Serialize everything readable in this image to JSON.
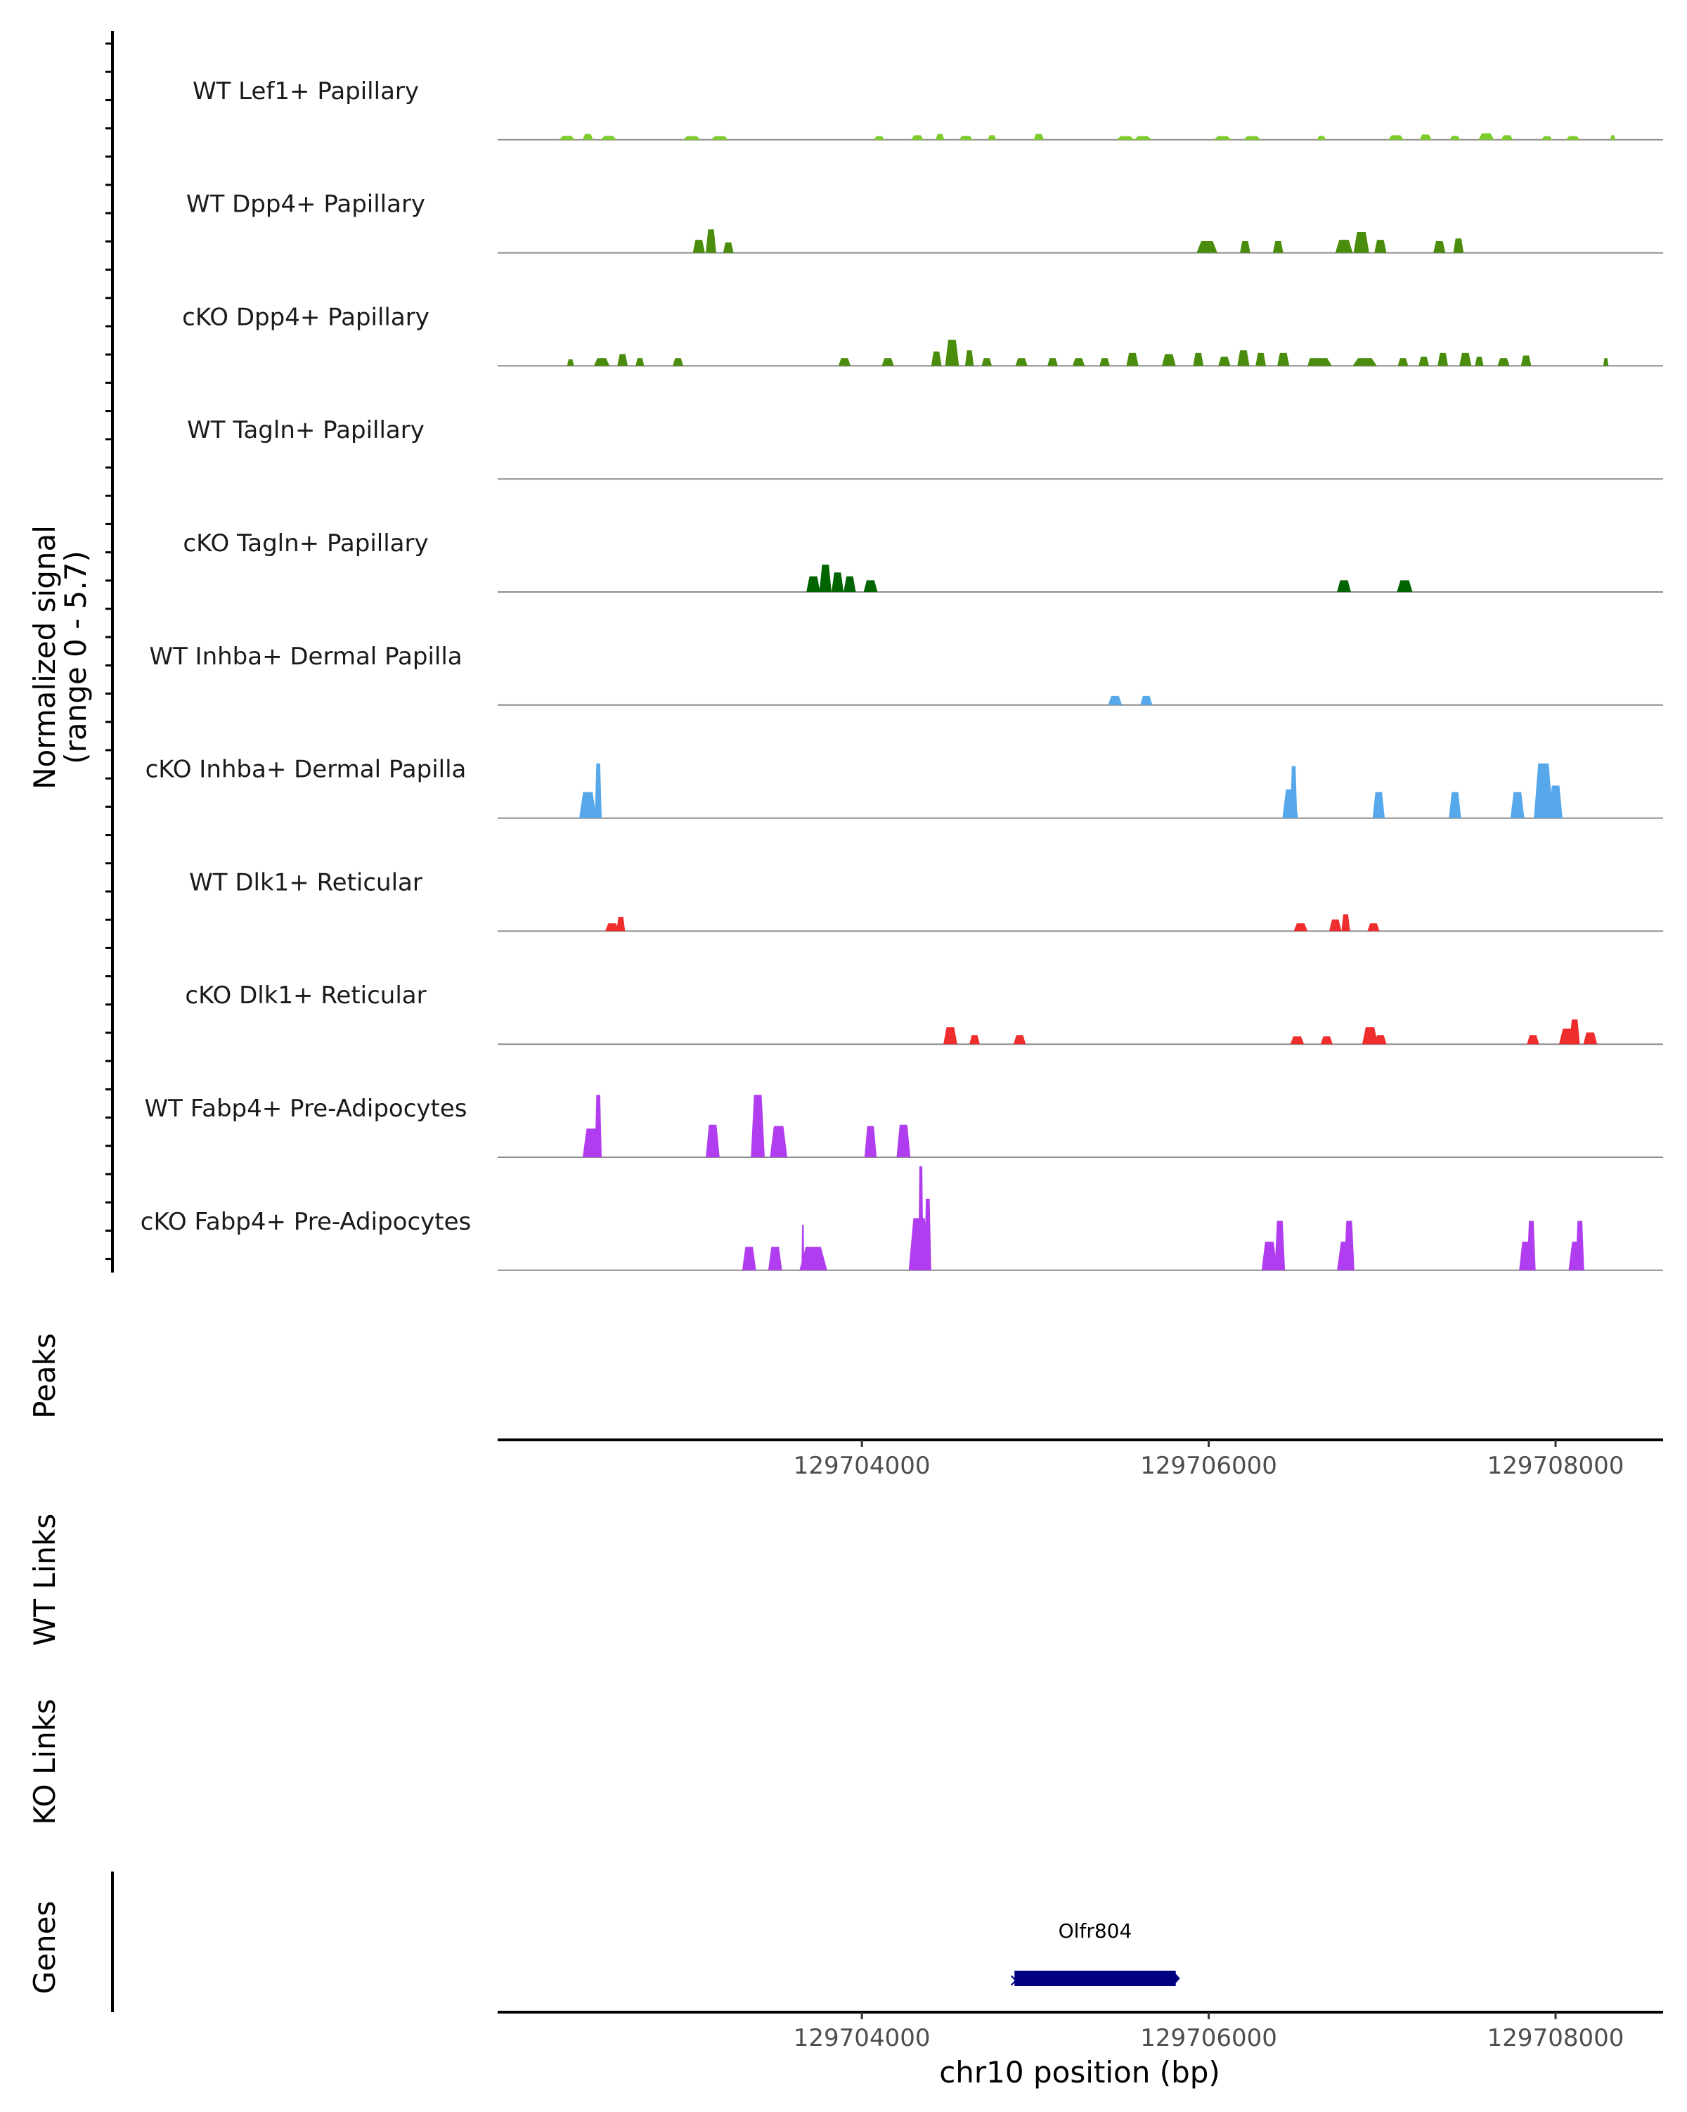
{
  "chart_data": {
    "type": "area",
    "subtype": "genome-coverage-track",
    "y_axis_title": "Normalized signal",
    "y_axis_range_label": "(range 0 - 5.7)",
    "ylim": [
      0,
      5.7
    ],
    "xlim": [
      129701900,
      129708620
    ],
    "tracks": [
      {
        "name": "WT Lef1+ Papillary",
        "color": "#7ccd2a",
        "peaks": [
          [
            129702300,
            0.3,
            90
          ],
          [
            129702420,
            0.45,
            60
          ],
          [
            129702540,
            0.3,
            90
          ],
          [
            129703020,
            0.28,
            100
          ],
          [
            129703180,
            0.28,
            100
          ],
          [
            129704100,
            0.28,
            60
          ],
          [
            129704320,
            0.35,
            70
          ],
          [
            129704450,
            0.45,
            50
          ],
          [
            129704600,
            0.3,
            80
          ],
          [
            129704750,
            0.35,
            50
          ],
          [
            129705020,
            0.45,
            60
          ],
          [
            129705520,
            0.28,
            100
          ],
          [
            129705620,
            0.28,
            100
          ],
          [
            129706080,
            0.28,
            100
          ],
          [
            129706250,
            0.28,
            100
          ],
          [
            129706650,
            0.3,
            50
          ],
          [
            129707080,
            0.35,
            90
          ],
          [
            129707250,
            0.4,
            70
          ],
          [
            129707420,
            0.3,
            60
          ],
          [
            129707600,
            0.5,
            90
          ],
          [
            129707720,
            0.35,
            70
          ],
          [
            129707950,
            0.28,
            60
          ],
          [
            129708100,
            0.28,
            80
          ],
          [
            129708330,
            0.35,
            30
          ]
        ]
      },
      {
        "name": "WT Dpp4+ Papillary",
        "color": "#4a8c0b",
        "peaks": [
          [
            129703060,
            1.0,
            70
          ],
          [
            129703130,
            1.8,
            60
          ],
          [
            129703230,
            0.8,
            60
          ],
          [
            129705990,
            0.9,
            120
          ],
          [
            129706210,
            0.9,
            60
          ],
          [
            129706400,
            0.9,
            60
          ],
          [
            129706780,
            1.0,
            100
          ],
          [
            129706880,
            1.6,
            90
          ],
          [
            129706990,
            1.0,
            70
          ],
          [
            129707330,
            0.9,
            70
          ],
          [
            129707440,
            1.1,
            60
          ]
        ]
      },
      {
        "name": "cKO Dpp4+ Papillary",
        "color": "#4a8c0b",
        "peaks": [
          [
            129702320,
            0.5,
            40
          ],
          [
            129702500,
            0.6,
            90
          ],
          [
            129702620,
            0.9,
            60
          ],
          [
            129702720,
            0.6,
            50
          ],
          [
            129702940,
            0.6,
            60
          ],
          [
            129703900,
            0.6,
            70
          ],
          [
            129704150,
            0.6,
            70
          ],
          [
            129704430,
            1.1,
            60
          ],
          [
            129704520,
            2.0,
            80
          ],
          [
            129704620,
            1.2,
            50
          ],
          [
            129704720,
            0.6,
            60
          ],
          [
            129704920,
            0.6,
            70
          ],
          [
            129705100,
            0.6,
            60
          ],
          [
            129705250,
            0.6,
            70
          ],
          [
            129705400,
            0.6,
            60
          ],
          [
            129705560,
            1.0,
            70
          ],
          [
            129705770,
            0.9,
            80
          ],
          [
            129705940,
            1.0,
            60
          ],
          [
            129706090,
            0.7,
            70
          ],
          [
            129706200,
            1.2,
            70
          ],
          [
            129706300,
            1.0,
            60
          ],
          [
            129706430,
            1.0,
            70
          ],
          [
            129706600,
            0.6,
            60
          ],
          [
            129706650,
            0.6,
            120
          ],
          [
            129706900,
            0.6,
            140
          ],
          [
            129707120,
            0.6,
            60
          ],
          [
            129707240,
            0.7,
            60
          ],
          [
            129707350,
            1.0,
            60
          ],
          [
            129707480,
            1.0,
            70
          ],
          [
            129707560,
            0.7,
            50
          ],
          [
            129707700,
            0.6,
            70
          ],
          [
            129707830,
            0.8,
            60
          ],
          [
            129708290,
            0.6,
            30
          ]
        ]
      },
      {
        "name": "WT Tagln+ Papillary",
        "color": "#006400",
        "peaks": []
      },
      {
        "name": "cKO Tagln+ Papillary",
        "color": "#006400",
        "peaks": [
          [
            129703720,
            1.2,
            80
          ],
          [
            129703790,
            2.1,
            70
          ],
          [
            129703860,
            1.5,
            70
          ],
          [
            129703930,
            1.2,
            70
          ],
          [
            129704050,
            0.9,
            80
          ],
          [
            129706780,
            0.9,
            80
          ],
          [
            129707130,
            0.9,
            90
          ]
        ]
      },
      {
        "name": "WT Inhba+ Dermal Papilla",
        "color": "#56a8ea",
        "peaks": [
          [
            129705460,
            0.7,
            80
          ],
          [
            129705640,
            0.7,
            70
          ]
        ]
      },
      {
        "name": "cKO Inhba+ Dermal Papilla",
        "color": "#56a8ea",
        "peaks": [
          [
            129702420,
            2.0,
            100
          ],
          [
            129702480,
            4.2,
            40
          ],
          [
            129706470,
            2.2,
            90
          ],
          [
            129706490,
            4.0,
            40
          ],
          [
            129706980,
            2.0,
            70
          ],
          [
            129707420,
            2.0,
            70
          ],
          [
            129707780,
            2.0,
            80
          ],
          [
            129707930,
            4.2,
            110
          ],
          [
            129708000,
            2.5,
            80
          ]
        ]
      },
      {
        "name": "WT Dlk1+ Reticular",
        "color": "#ef2d2d",
        "peaks": [
          [
            129702560,
            0.6,
            80
          ],
          [
            129702610,
            1.1,
            50
          ],
          [
            129706530,
            0.6,
            80
          ],
          [
            129706730,
            0.9,
            70
          ],
          [
            129706790,
            1.3,
            50
          ],
          [
            129706950,
            0.6,
            70
          ]
        ]
      },
      {
        "name": "cKO Dlk1+ Reticular",
        "color": "#ef2d2d",
        "peaks": [
          [
            129704510,
            1.3,
            80
          ],
          [
            129704650,
            0.7,
            60
          ],
          [
            129704910,
            0.7,
            70
          ],
          [
            129706510,
            0.6,
            80
          ],
          [
            129706680,
            0.6,
            70
          ],
          [
            129706930,
            1.3,
            90
          ],
          [
            129706990,
            0.7,
            70
          ],
          [
            129707870,
            0.7,
            70
          ],
          [
            129708070,
            1.2,
            100
          ],
          [
            129708110,
            1.9,
            60
          ],
          [
            129708200,
            0.9,
            80
          ]
        ]
      },
      {
        "name": "WT Fabp4+ Pre-Adipocytes",
        "color": "#b03ef0",
        "peaks": [
          [
            129702440,
            2.2,
            100
          ],
          [
            129702480,
            4.8,
            40
          ],
          [
            129703140,
            2.5,
            80
          ],
          [
            129703400,
            4.8,
            80
          ],
          [
            129703520,
            2.4,
            100
          ],
          [
            129704050,
            2.4,
            70
          ],
          [
            129704240,
            2.5,
            80
          ]
        ]
      },
      {
        "name": "cKO Fabp4+ Pre-Adipocytes",
        "color": "#b03ef0",
        "peaks": [
          [
            129703350,
            1.8,
            80
          ],
          [
            129703500,
            1.8,
            80
          ],
          [
            129703720,
            1.8,
            160
          ],
          [
            129703660,
            3.5,
            10
          ],
          [
            129704330,
            4.0,
            120
          ],
          [
            129704340,
            8.0,
            30
          ],
          [
            129704380,
            5.5,
            40
          ],
          [
            129706350,
            2.2,
            90
          ],
          [
            129706410,
            3.8,
            60
          ],
          [
            129706790,
            2.2,
            100
          ],
          [
            129706810,
            3.8,
            60
          ],
          [
            129707830,
            2.2,
            80
          ],
          [
            129707860,
            3.8,
            50
          ],
          [
            129708120,
            2.2,
            90
          ],
          [
            129708140,
            3.8,
            50
          ]
        ]
      }
    ],
    "coverage_axis": {
      "ticks": "",
      "labels": [
        "",
        "",
        ""
      ]
    },
    "peaks_track": {
      "label": "Peaks"
    },
    "x_axis": {
      "ticks": [
        129704000,
        129706000,
        129708000
      ],
      "tick_labels": [
        "129704000",
        "129706000",
        "129708000"
      ],
      "title": "chr10 position (bp)"
    },
    "links_tracks": [
      {
        "label": "WT Links"
      },
      {
        "label": "KO Links"
      }
    ],
    "genes_track": {
      "label": "Genes",
      "genes": [
        {
          "name": "Olfr804",
          "start": 129704880,
          "end": 129705810,
          "color": "#000080"
        }
      ]
    }
  }
}
